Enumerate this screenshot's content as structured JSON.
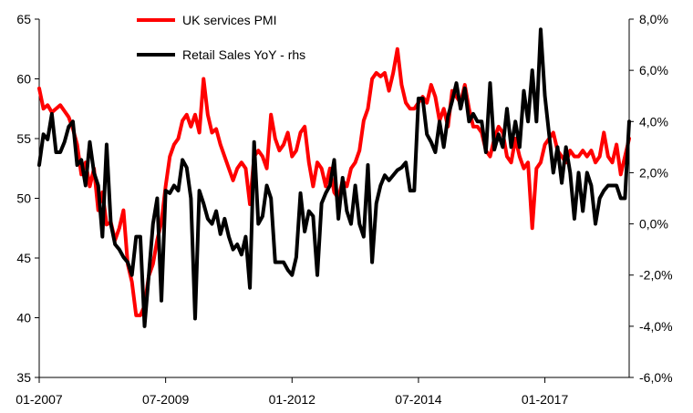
{
  "chart_data": {
    "type": "line",
    "title": "",
    "xlabel": "",
    "ylabel": "",
    "x_tick_labels": [
      "01-2007",
      "07-2009",
      "01-2012",
      "07-2014",
      "01-2017"
    ],
    "x_ticks_months": [
      0,
      30,
      60,
      90,
      120
    ],
    "x_range_months": [
      0,
      140
    ],
    "y_left": {
      "ticks": [
        "65",
        "60",
        "55",
        "50",
        "45",
        "40",
        "35"
      ],
      "range": [
        35,
        65
      ]
    },
    "y_right": {
      "ticks": [
        "8,0%",
        "6,0%",
        "4,0%",
        "2,0%",
        "0,0%",
        "-2,0%",
        "-4,0%",
        "-6,0%"
      ],
      "range": [
        -6,
        8
      ]
    },
    "grid": false,
    "legend_position": "top-center",
    "series": [
      {
        "name": "UK services PMI",
        "axis": "left",
        "color": "#ff0000",
        "points": [
          [
            0,
            59.2
          ],
          [
            1,
            57.5
          ],
          [
            2,
            57.8
          ],
          [
            3,
            57.2
          ],
          [
            4,
            57.5
          ],
          [
            5,
            57.8
          ],
          [
            6,
            57.3
          ],
          [
            7,
            56.8
          ],
          [
            8,
            55.8
          ],
          [
            9,
            54.5
          ],
          [
            10,
            52.0
          ],
          [
            11,
            53.0
          ],
          [
            12,
            51.0
          ],
          [
            13,
            52.5
          ],
          [
            14,
            49.0
          ],
          [
            15,
            50.5
          ],
          [
            16,
            47.8
          ],
          [
            17,
            48.0
          ],
          [
            18,
            46.5
          ],
          [
            19,
            47.5
          ],
          [
            20,
            49.0
          ],
          [
            21,
            44.5
          ],
          [
            22,
            43.0
          ],
          [
            23,
            40.2
          ],
          [
            24,
            40.2
          ],
          [
            25,
            41.0
          ],
          [
            26,
            43.5
          ],
          [
            27,
            44.5
          ],
          [
            28,
            46.5
          ],
          [
            29,
            48.0
          ],
          [
            30,
            51.0
          ],
          [
            31,
            53.5
          ],
          [
            32,
            54.5
          ],
          [
            33,
            55.0
          ],
          [
            34,
            56.5
          ],
          [
            35,
            57.0
          ],
          [
            36,
            56.0
          ],
          [
            37,
            57.0
          ],
          [
            38,
            55.5
          ],
          [
            39,
            60.0
          ],
          [
            40,
            57.0
          ],
          [
            41,
            55.5
          ],
          [
            42,
            55.8
          ],
          [
            43,
            54.5
          ],
          [
            44,
            53.5
          ],
          [
            45,
            52.5
          ],
          [
            46,
            51.5
          ],
          [
            47,
            52.5
          ],
          [
            48,
            53.0
          ],
          [
            49,
            52.5
          ],
          [
            50,
            49.5
          ],
          [
            51,
            53.5
          ],
          [
            52,
            54.0
          ],
          [
            53,
            53.5
          ],
          [
            54,
            52.5
          ],
          [
            55,
            57.0
          ],
          [
            56,
            55.0
          ],
          [
            57,
            54.0
          ],
          [
            58,
            54.5
          ],
          [
            59,
            55.5
          ],
          [
            60,
            53.5
          ],
          [
            61,
            54.0
          ],
          [
            62,
            55.5
          ],
          [
            63,
            56.0
          ],
          [
            64,
            53.0
          ],
          [
            65,
            51.0
          ],
          [
            66,
            53.0
          ],
          [
            67,
            52.5
          ],
          [
            68,
            51.0
          ],
          [
            69,
            52.5
          ],
          [
            70,
            50.5
          ],
          [
            71,
            50.0
          ],
          [
            72,
            51.5
          ],
          [
            73,
            51.0
          ],
          [
            74,
            52.5
          ],
          [
            75,
            53.0
          ],
          [
            76,
            54.0
          ],
          [
            77,
            56.5
          ],
          [
            78,
            57.5
          ],
          [
            79,
            60.0
          ],
          [
            80,
            60.5
          ],
          [
            81,
            60.2
          ],
          [
            82,
            60.5
          ],
          [
            83,
            59.0
          ],
          [
            84,
            60.5
          ],
          [
            85,
            62.5
          ],
          [
            86,
            59.5
          ],
          [
            87,
            58.0
          ],
          [
            88,
            57.5
          ],
          [
            89,
            57.5
          ],
          [
            90,
            58.0
          ],
          [
            91,
            58.5
          ],
          [
            92,
            58.0
          ],
          [
            93,
            59.5
          ],
          [
            94,
            58.5
          ],
          [
            95,
            56.5
          ],
          [
            96,
            57.5
          ],
          [
            97,
            56.0
          ],
          [
            98,
            59.0
          ],
          [
            99,
            58.5
          ],
          [
            100,
            58.0
          ],
          [
            101,
            59.5
          ],
          [
            102,
            57.5
          ],
          [
            103,
            56.0
          ],
          [
            104,
            56.0
          ],
          [
            105,
            55.5
          ],
          [
            106,
            54.0
          ],
          [
            107,
            53.5
          ],
          [
            108,
            55.0
          ],
          [
            109,
            56.0
          ],
          [
            110,
            55.5
          ],
          [
            111,
            53.5
          ],
          [
            112,
            53.0
          ],
          [
            113,
            55.0
          ],
          [
            114,
            53.5
          ],
          [
            115,
            52.5
          ],
          [
            116,
            53.0
          ],
          [
            117,
            47.5
          ],
          [
            118,
            52.5
          ],
          [
            119,
            53.0
          ],
          [
            120,
            54.5
          ],
          [
            121,
            55.0
          ],
          [
            122,
            55.5
          ],
          [
            123,
            54.0
          ],
          [
            124,
            53.5
          ],
          [
            125,
            53.0
          ],
          [
            126,
            54.0
          ],
          [
            127,
            53.5
          ],
          [
            128,
            53.5
          ],
          [
            129,
            54.0
          ],
          [
            130,
            53.5
          ],
          [
            131,
            54.0
          ],
          [
            132,
            53.0
          ],
          [
            133,
            53.5
          ],
          [
            134,
            55.5
          ],
          [
            135,
            53.5
          ],
          [
            136,
            53.0
          ],
          [
            137,
            54.5
          ],
          [
            138,
            52.0
          ],
          [
            139,
            53.5
          ],
          [
            140,
            55.0
          ]
        ]
      },
      {
        "name": "Retail Sales YoY - rhs",
        "axis": "right",
        "color": "#000000",
        "points": [
          [
            0,
            2.3
          ],
          [
            1,
            3.5
          ],
          [
            2,
            3.3
          ],
          [
            3,
            4.3
          ],
          [
            4,
            2.8
          ],
          [
            5,
            2.8
          ],
          [
            6,
            3.2
          ],
          [
            7,
            3.8
          ],
          [
            8,
            4.0
          ],
          [
            9,
            2.3
          ],
          [
            10,
            2.5
          ],
          [
            11,
            1.5
          ],
          [
            12,
            3.2
          ],
          [
            13,
            2.0
          ],
          [
            14,
            1.5
          ],
          [
            15,
            -0.5
          ],
          [
            16,
            3.1
          ],
          [
            17,
            0.0
          ],
          [
            18,
            -0.8
          ],
          [
            19,
            -1.0
          ],
          [
            20,
            -1.3
          ],
          [
            21,
            -1.5
          ],
          [
            22,
            -2.0
          ],
          [
            23,
            -0.5
          ],
          [
            24,
            -0.5
          ],
          [
            25,
            -4.0
          ],
          [
            26,
            -2.0
          ],
          [
            27,
            0.0
          ],
          [
            28,
            1.0
          ],
          [
            29,
            -3.0
          ],
          [
            30,
            1.3
          ],
          [
            31,
            1.2
          ],
          [
            32,
            1.5
          ],
          [
            33,
            1.3
          ],
          [
            34,
            2.5
          ],
          [
            35,
            2.2
          ],
          [
            36,
            1.0
          ],
          [
            37,
            -3.7
          ],
          [
            38,
            1.3
          ],
          [
            39,
            0.8
          ],
          [
            40,
            0.2
          ],
          [
            41,
            0.0
          ],
          [
            42,
            0.5
          ],
          [
            43,
            -0.4
          ],
          [
            44,
            0.2
          ],
          [
            45,
            -0.5
          ],
          [
            46,
            -1.0
          ],
          [
            47,
            -0.8
          ],
          [
            48,
            -1.2
          ],
          [
            49,
            -0.5
          ],
          [
            50,
            -2.5
          ],
          [
            51,
            3.2
          ],
          [
            52,
            0.0
          ],
          [
            53,
            0.3
          ],
          [
            54,
            1.5
          ],
          [
            55,
            1.0
          ],
          [
            56,
            -1.5
          ],
          [
            57,
            -1.5
          ],
          [
            58,
            -1.5
          ],
          [
            59,
            -1.8
          ],
          [
            60,
            -2.0
          ],
          [
            61,
            -1.3
          ],
          [
            62,
            1.2
          ],
          [
            63,
            -0.3
          ],
          [
            64,
            0.5
          ],
          [
            65,
            0.3
          ],
          [
            66,
            -2.0
          ],
          [
            67,
            0.8
          ],
          [
            68,
            1.2
          ],
          [
            69,
            1.5
          ],
          [
            70,
            2.5
          ],
          [
            71,
            0.2
          ],
          [
            72,
            1.8
          ],
          [
            73,
            0.5
          ],
          [
            74,
            0.0
          ],
          [
            75,
            1.5
          ],
          [
            76,
            0.0
          ],
          [
            77,
            -0.5
          ],
          [
            78,
            2.3
          ],
          [
            79,
            -1.5
          ],
          [
            80,
            0.8
          ],
          [
            81,
            1.5
          ],
          [
            82,
            1.9
          ],
          [
            83,
            1.7
          ],
          [
            84,
            1.9
          ],
          [
            85,
            2.1
          ],
          [
            86,
            2.2
          ],
          [
            87,
            2.4
          ],
          [
            88,
            1.3
          ],
          [
            89,
            1.3
          ],
          [
            90,
            4.9
          ],
          [
            91,
            4.9
          ],
          [
            92,
            3.5
          ],
          [
            93,
            3.2
          ],
          [
            94,
            2.8
          ],
          [
            95,
            4.0
          ],
          [
            96,
            3.0
          ],
          [
            97,
            4.2
          ],
          [
            98,
            4.8
          ],
          [
            99,
            5.5
          ],
          [
            100,
            4.5
          ],
          [
            101,
            5.3
          ],
          [
            102,
            4.0
          ],
          [
            103,
            4.3
          ],
          [
            104,
            4.0
          ],
          [
            105,
            4.0
          ],
          [
            106,
            2.8
          ],
          [
            107,
            5.5
          ],
          [
            108,
            2.9
          ],
          [
            109,
            3.5
          ],
          [
            110,
            3.0
          ],
          [
            111,
            4.5
          ],
          [
            112,
            3.0
          ],
          [
            113,
            4.0
          ],
          [
            114,
            3.0
          ],
          [
            115,
            5.2
          ],
          [
            116,
            4.0
          ],
          [
            117,
            6.0
          ],
          [
            118,
            4.0
          ],
          [
            119,
            7.6
          ],
          [
            120,
            5.0
          ],
          [
            121,
            3.5
          ],
          [
            122,
            2.0
          ],
          [
            123,
            3.0
          ],
          [
            124,
            1.6
          ],
          [
            125,
            3.0
          ],
          [
            126,
            2.0
          ],
          [
            127,
            0.2
          ],
          [
            128,
            2.0
          ],
          [
            129,
            0.5
          ],
          [
            130,
            2.0
          ],
          [
            131,
            1.5
          ],
          [
            132,
            0.0
          ],
          [
            133,
            1.0
          ],
          [
            134,
            1.3
          ],
          [
            135,
            1.5
          ],
          [
            136,
            1.5
          ],
          [
            137,
            1.5
          ],
          [
            138,
            1.0
          ],
          [
            139,
            1.0
          ],
          [
            140,
            4.0
          ]
        ]
      }
    ]
  }
}
